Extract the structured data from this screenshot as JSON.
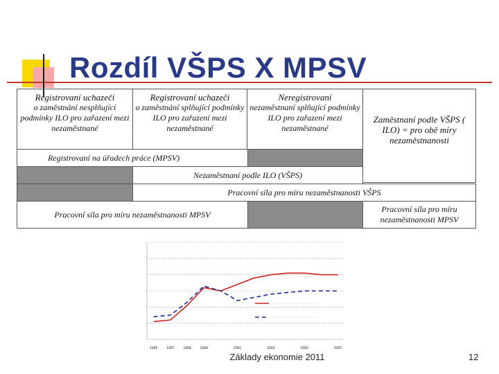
{
  "slide": {
    "title": "Rozdíl VŠPS X MPSV",
    "footer": "Základy ekonomie 2011",
    "page_number": "12"
  },
  "diagram": {
    "col1_head": "Registrovaní uchazeči",
    "col1_body": "o zaměstnání nesplňující podmínky ILO pro zařazení mezi nezaměstnané",
    "col2_head": "Registrovaní uchazeči",
    "col2_body": "o zaměstnání splňující podmínky ILO pro zařazení mezi nezaměstnané",
    "col3_head": "Neregistrovaní",
    "col3_body": "nezaměstnaní splňující podmínky ILO pro zařazení mezi nezaměstnané",
    "col4": "Zaměstnaní podle VŠPS ( ILO) = pro obě míry nezaměstnanosti",
    "row_registered": "Registrovaní na úřadech práce (MPSV)",
    "row_ilo": "Nezaměstnaní podle ILO (VŠPS)",
    "row_workforce_vsps": "Pracovní síla pro míru nezaměstnanosti VŠPS",
    "row_workforce_mpsv": "Pracovní síla pro míru nezaměstnanosti MPSV",
    "row_workforce_mpsv_right": "Pracovní síla pro míru nezaměstnanosti MPSV"
  },
  "chart_data": {
    "type": "line",
    "x": [
      1996,
      1997,
      1998,
      1999,
      2000,
      2001,
      2002,
      2003,
      2004,
      2005,
      2006,
      2007
    ],
    "x_tick_labels": [
      "1996",
      "1997",
      "1998",
      "1999",
      "2001",
      "2003",
      "2005",
      "2007"
    ],
    "x_tick_values": [
      1996,
      1997,
      1998,
      1999,
      2001,
      2003,
      2005,
      2007
    ],
    "xlim": [
      1995.6,
      2007.3
    ],
    "ylim": [
      0,
      6
    ],
    "series": [
      {
        "color": "#cc2222",
        "dash": "",
        "values": [
          1.1,
          1.2,
          2.1,
          3.2,
          3.0,
          3.4,
          3.8,
          4.0,
          4.1,
          4.1,
          4.0,
          4.0
        ]
      },
      {
        "color": "#1b2a8a",
        "dash": "6,4",
        "values": [
          1.4,
          1.5,
          2.3,
          3.3,
          3.0,
          2.4,
          2.6,
          2.8,
          2.9,
          3.0,
          3.0,
          3.0
        ]
      }
    ],
    "grid": true,
    "legend": "bottom-right"
  }
}
